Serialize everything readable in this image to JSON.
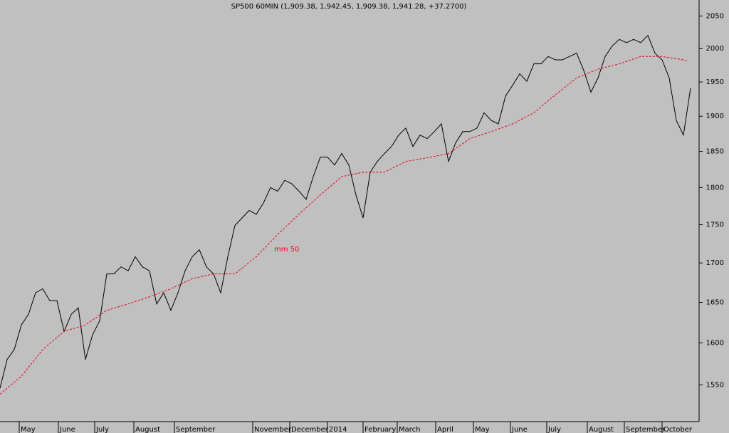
{
  "chart_data": {
    "type": "line",
    "title": "SP500 60MIN (1,909.38, 1,942.45, 1,909.38, 1,941.28, +37.2700)",
    "annotation": "mm 50",
    "log_scale": true,
    "xlim": [
      0,
      98.2
    ],
    "xticks": [
      {
        "value": 2.7,
        "label": "May"
      },
      {
        "value": 8.2,
        "label": "June"
      },
      {
        "value": 13.3,
        "label": "July"
      },
      {
        "value": 18.8,
        "label": "August"
      },
      {
        "value": 24.5,
        "label": "September"
      },
      {
        "value": 35.5,
        "label": "November"
      },
      {
        "value": 40.7,
        "label": "December"
      },
      {
        "value": 46,
        "label": "2014"
      },
      {
        "value": 51,
        "label": "February"
      },
      {
        "value": 55.8,
        "label": "March"
      },
      {
        "value": 61.2,
        "label": "April"
      },
      {
        "value": 66.5,
        "label": "May"
      },
      {
        "value": 71.7,
        "label": "June"
      },
      {
        "value": 76.8,
        "label": "July"
      },
      {
        "value": 82.5,
        "label": "August"
      },
      {
        "value": 87.7,
        "label": "September"
      },
      {
        "value": 93,
        "label": "October"
      }
    ],
    "ylim": [
      1509,
      2075
    ],
    "yticks": [
      1550,
      1600,
      1650,
      1700,
      1750,
      1800,
      1850,
      1900,
      1950,
      2000,
      2050
    ],
    "series": [
      {
        "name": "SP500",
        "color": "#000000",
        "dashed": false,
        "x": [
          0,
          1,
          2,
          3,
          4,
          5,
          6,
          7,
          8,
          9,
          10,
          11,
          12,
          13,
          14,
          15,
          16,
          17,
          18,
          19,
          20,
          21,
          22,
          23,
          24,
          25,
          26,
          27,
          28,
          29,
          30,
          31,
          32,
          33,
          34,
          35,
          36,
          37,
          38,
          39,
          40,
          41,
          42,
          43,
          44,
          45,
          46,
          47,
          48,
          49,
          50,
          51,
          52,
          53,
          54,
          55,
          56,
          57,
          58,
          59,
          60,
          61,
          62,
          63,
          64,
          65,
          66,
          67,
          68,
          69,
          70,
          71,
          72,
          73,
          74,
          75,
          76,
          77,
          78,
          79,
          80,
          81,
          82,
          83,
          84,
          85,
          86,
          87,
          88,
          89,
          90,
          91,
          92,
          93,
          94,
          95,
          96,
          97
        ],
        "values": [
          1546,
          1580,
          1592,
          1622,
          1635,
          1662,
          1667,
          1652,
          1652,
          1614,
          1635,
          1643,
          1580,
          1610,
          1627,
          1686,
          1686,
          1695,
          1690,
          1708,
          1695,
          1690,
          1648,
          1662,
          1640,
          1662,
          1690,
          1708,
          1717,
          1695,
          1686,
          1662,
          1708,
          1749,
          1759,
          1769,
          1764,
          1779,
          1800,
          1795,
          1810,
          1805,
          1795,
          1784,
          1815,
          1842,
          1842,
          1831,
          1847,
          1831,
          1790,
          1759,
          1821,
          1836,
          1847,
          1857,
          1873,
          1883,
          1857,
          1873,
          1868,
          1878,
          1889,
          1836,
          1862,
          1878,
          1878,
          1883,
          1905,
          1894,
          1889,
          1929,
          1945,
          1962,
          1951,
          1977,
          1977,
          1988,
          1983,
          1983,
          1988,
          1993,
          1967,
          1935,
          1956,
          1988,
          2004,
          2014,
          2009,
          2014,
          2009,
          2020,
          1993,
          1983,
          1956,
          1894,
          1873,
          1941
        ]
      },
      {
        "name": "mm 50",
        "color": "#e8001c",
        "dashed": true,
        "x": [
          0,
          3,
          6,
          9,
          12,
          15,
          18,
          21,
          24,
          27,
          30,
          33,
          36,
          39,
          42,
          45,
          48,
          51,
          54,
          57,
          60,
          63,
          66,
          69,
          72,
          75,
          78,
          81,
          84,
          87,
          90,
          93,
          96,
          96.6
        ],
        "values": [
          1539,
          1560,
          1592,
          1614,
          1622,
          1640,
          1648,
          1657,
          1667,
          1680,
          1686,
          1686,
          1708,
          1737,
          1764,
          1790,
          1815,
          1821,
          1821,
          1836,
          1841,
          1847,
          1868,
          1878,
          1889,
          1905,
          1931,
          1956,
          1969,
          1977,
          1988,
          1988,
          1983,
          1981
        ]
      }
    ]
  }
}
